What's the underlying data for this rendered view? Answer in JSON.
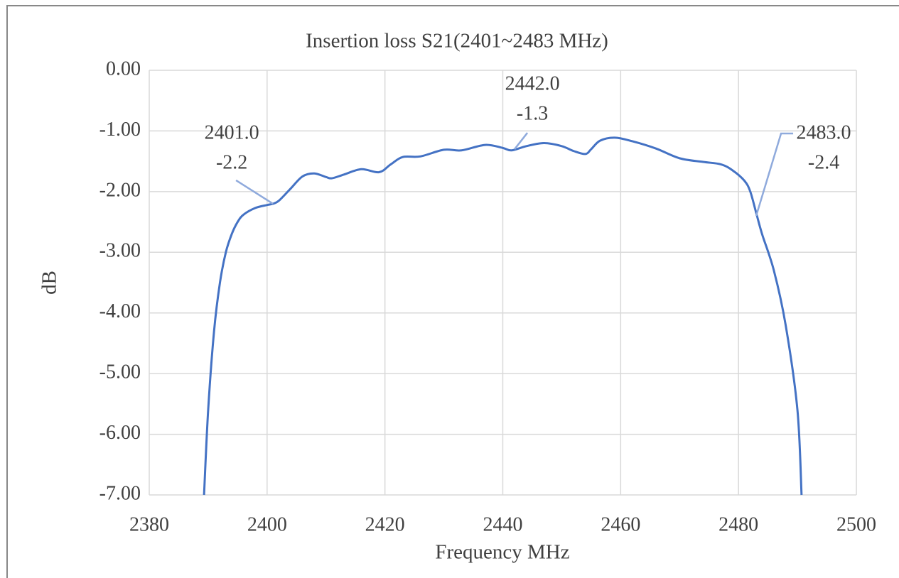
{
  "chart_data": {
    "type": "line",
    "title": "Insertion loss S21(2401~2483 MHz)",
    "x_label": "Frequency MHz",
    "y_label": "dB",
    "color": "#4472c4",
    "grid": true,
    "x": [
      2389.3,
      2390,
      2391,
      2392,
      2393,
      2394,
      2395,
      2396,
      2398,
      2400,
      2401,
      2402,
      2404,
      2406,
      2408,
      2410,
      2411,
      2413,
      2416,
      2419,
      2421,
      2423,
      2426,
      2430,
      2433,
      2437,
      2440,
      2441.5,
      2444,
      2447,
      2450,
      2452,
      2454,
      2455,
      2456.5,
      2459,
      2462,
      2466,
      2470,
      2474,
      2477,
      2479,
      2481,
      2482,
      2483,
      2484,
      2486,
      2488,
      2490,
      2490.7
    ],
    "values": [
      -7.0,
      -5.6,
      -4.3,
      -3.5,
      -3.0,
      -2.7,
      -2.5,
      -2.38,
      -2.27,
      -2.22,
      -2.2,
      -2.15,
      -1.95,
      -1.75,
      -1.7,
      -1.76,
      -1.78,
      -1.72,
      -1.63,
      -1.68,
      -1.55,
      -1.43,
      -1.42,
      -1.31,
      -1.32,
      -1.23,
      -1.28,
      -1.32,
      -1.25,
      -1.2,
      -1.25,
      -1.33,
      -1.38,
      -1.3,
      -1.16,
      -1.11,
      -1.17,
      -1.29,
      -1.45,
      -1.51,
      -1.55,
      -1.65,
      -1.82,
      -2.0,
      -2.35,
      -2.7,
      -3.3,
      -4.2,
      -5.6,
      -7.0
    ],
    "annotations": [
      {
        "x": 2401,
        "x_label": "2401.0",
        "y": -2.2
      },
      {
        "x": 2442,
        "x_label": "2442.0",
        "y": -1.3
      },
      {
        "x": 2483,
        "x_label": "2483.0",
        "y": -2.4
      }
    ],
    "xlim": [
      2380,
      2500
    ],
    "xticks": [
      2380,
      2400,
      2420,
      2440,
      2460,
      2480,
      2500
    ],
    "ylim": [
      -7,
      0
    ],
    "yticks": [
      {
        "value": 0,
        "label": "0.00"
      },
      {
        "value": -1,
        "label": "-1.00"
      },
      {
        "value": -2,
        "label": "-2.00"
      },
      {
        "value": -3,
        "label": "-3.00"
      },
      {
        "value": -4,
        "label": "-4.00"
      },
      {
        "value": -5,
        "label": "-5.00"
      },
      {
        "value": -6,
        "label": "-6.00"
      },
      {
        "value": -7,
        "label": "-7.00"
      }
    ]
  }
}
